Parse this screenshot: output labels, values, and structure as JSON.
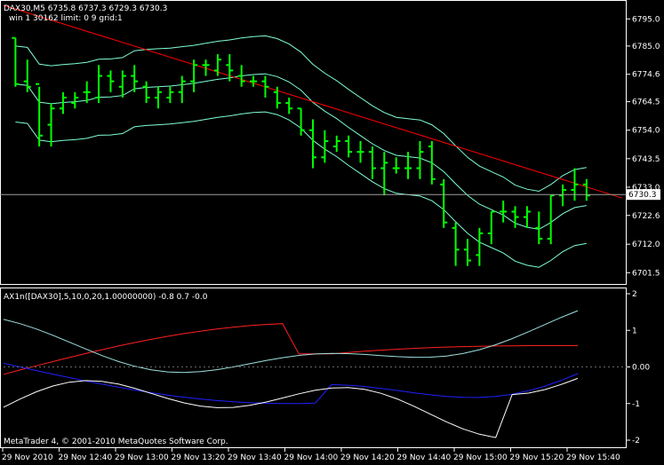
{
  "main_panel": {
    "header_line1": "DAX30,M5  6735.8 6737.3 6729.3 6730.3",
    "header_line2": "win 1 30162 limit: 0 9 grid:1",
    "current_price_label": "6730.3"
  },
  "indicator_panel": {
    "header": "AX1n([DAX30],5,10,0,20,1.00000000) -0.8 0.7 -0.0"
  },
  "copyright": "MetaTrader 4, © 2001-2010 MetaQuotes Software Corp.",
  "colors": {
    "background": "#000000",
    "grid_and_frame": "#ffffff",
    "bar": "#00ff00",
    "trend_line": "#ff0000",
    "band": "#7fffd4",
    "ind_red": "#ff2020",
    "ind_blue": "#2020ff",
    "ind_white": "#ffffff",
    "ind_aqua": "#a0e0e0"
  },
  "chart_data": [
    {
      "type": "ohlc",
      "title": "DAX30,M5",
      "ylim": [
        6698,
        6800
      ],
      "y_ticks": [
        "6795.0",
        "6785.0",
        "6774.6",
        "6764.5",
        "6754.0",
        "6743.5",
        "6733.0",
        "6722.6",
        "6712.0",
        "6701.5"
      ],
      "x_ticks": [
        "29 Nov 2010",
        "29 Nov 12:40",
        "29 Nov 13:00",
        "29 Nov 13:20",
        "29 Nov 13:40",
        "29 Nov 14:00",
        "29 Nov 14:20",
        "29 Nov 14:40",
        "29 Nov 15:00",
        "29 Nov 15:20",
        "29 Nov 15:40"
      ],
      "current_price": 6730.3,
      "bars": [
        [
          6788,
          6788,
          6770,
          6771
        ],
        [
          6772,
          6780,
          6768,
          6770
        ],
        [
          6771,
          6770,
          6748,
          6752
        ],
        [
          6756,
          6764,
          6748,
          6762
        ],
        [
          6762,
          6768,
          6760,
          6766
        ],
        [
          6764,
          6768,
          6762,
          6766
        ],
        [
          6768,
          6772,
          6764,
          6768
        ],
        [
          6766,
          6778,
          6764,
          6774
        ],
        [
          6774,
          6776,
          6768,
          6772
        ],
        [
          6770,
          6776,
          6766,
          6774
        ],
        [
          6774,
          6778,
          6768,
          6772
        ],
        [
          6770,
          6772,
          6764,
          6766
        ],
        [
          6766,
          6770,
          6762,
          6768
        ],
        [
          6766,
          6770,
          6764,
          6768
        ],
        [
          6768,
          6774,
          6764,
          6772
        ],
        [
          6772,
          6780,
          6768,
          6778
        ],
        [
          6778,
          6780,
          6774,
          6778
        ],
        [
          6776,
          6782,
          6774,
          6780
        ],
        [
          6778,
          6782,
          6772,
          6776
        ],
        [
          6774,
          6778,
          6770,
          6772
        ],
        [
          6772,
          6774,
          6770,
          6772
        ],
        [
          6772,
          6774,
          6766,
          6770
        ],
        [
          6768,
          6770,
          6762,
          6764
        ],
        [
          6764,
          6766,
          6760,
          6762
        ],
        [
          6762,
          6762,
          6752,
          6754
        ],
        [
          6754,
          6758,
          6740,
          6744
        ],
        [
          6744,
          6754,
          6742,
          6750
        ],
        [
          6748,
          6752,
          6746,
          6750
        ],
        [
          6750,
          6752,
          6744,
          6746
        ],
        [
          6746,
          6750,
          6742,
          6746
        ],
        [
          6746,
          6748,
          6736,
          6740
        ],
        [
          6740,
          6746,
          6730,
          6742
        ],
        [
          6740,
          6744,
          6738,
          6740
        ],
        [
          6740,
          6746,
          6736,
          6740
        ],
        [
          6740,
          6750,
          6736,
          6746
        ],
        [
          6748,
          6750,
          6734,
          6736
        ],
        [
          6734,
          6736,
          6718,
          6720
        ],
        [
          6718,
          6720,
          6704,
          6710
        ],
        [
          6710,
          6714,
          6704,
          6706
        ],
        [
          6708,
          6718,
          6704,
          6716
        ],
        [
          6716,
          6724,
          6712,
          6724
        ],
        [
          6724,
          6728,
          6720,
          6724
        ],
        [
          6724,
          6726,
          6718,
          6722
        ],
        [
          6722,
          6726,
          6718,
          6724
        ],
        [
          6718,
          6724,
          6712,
          6714
        ],
        [
          6714,
          6730,
          6712,
          6730
        ],
        [
          6730,
          6734,
          6726,
          6732
        ],
        [
          6732,
          6740,
          6728,
          6734
        ],
        [
          6734,
          6736,
          6728,
          6730
        ]
      ],
      "trend_line": [
        [
          0,
          6800
        ],
        [
          49,
          6729
        ]
      ]
    },
    {
      "type": "line",
      "title": "AX1n([DAX30],5,10,0,20,1.00000000)",
      "ylim": [
        -2,
        2
      ],
      "y_ticks": [
        "2",
        "1",
        "0.00",
        "-1",
        "-2"
      ]
    }
  ]
}
